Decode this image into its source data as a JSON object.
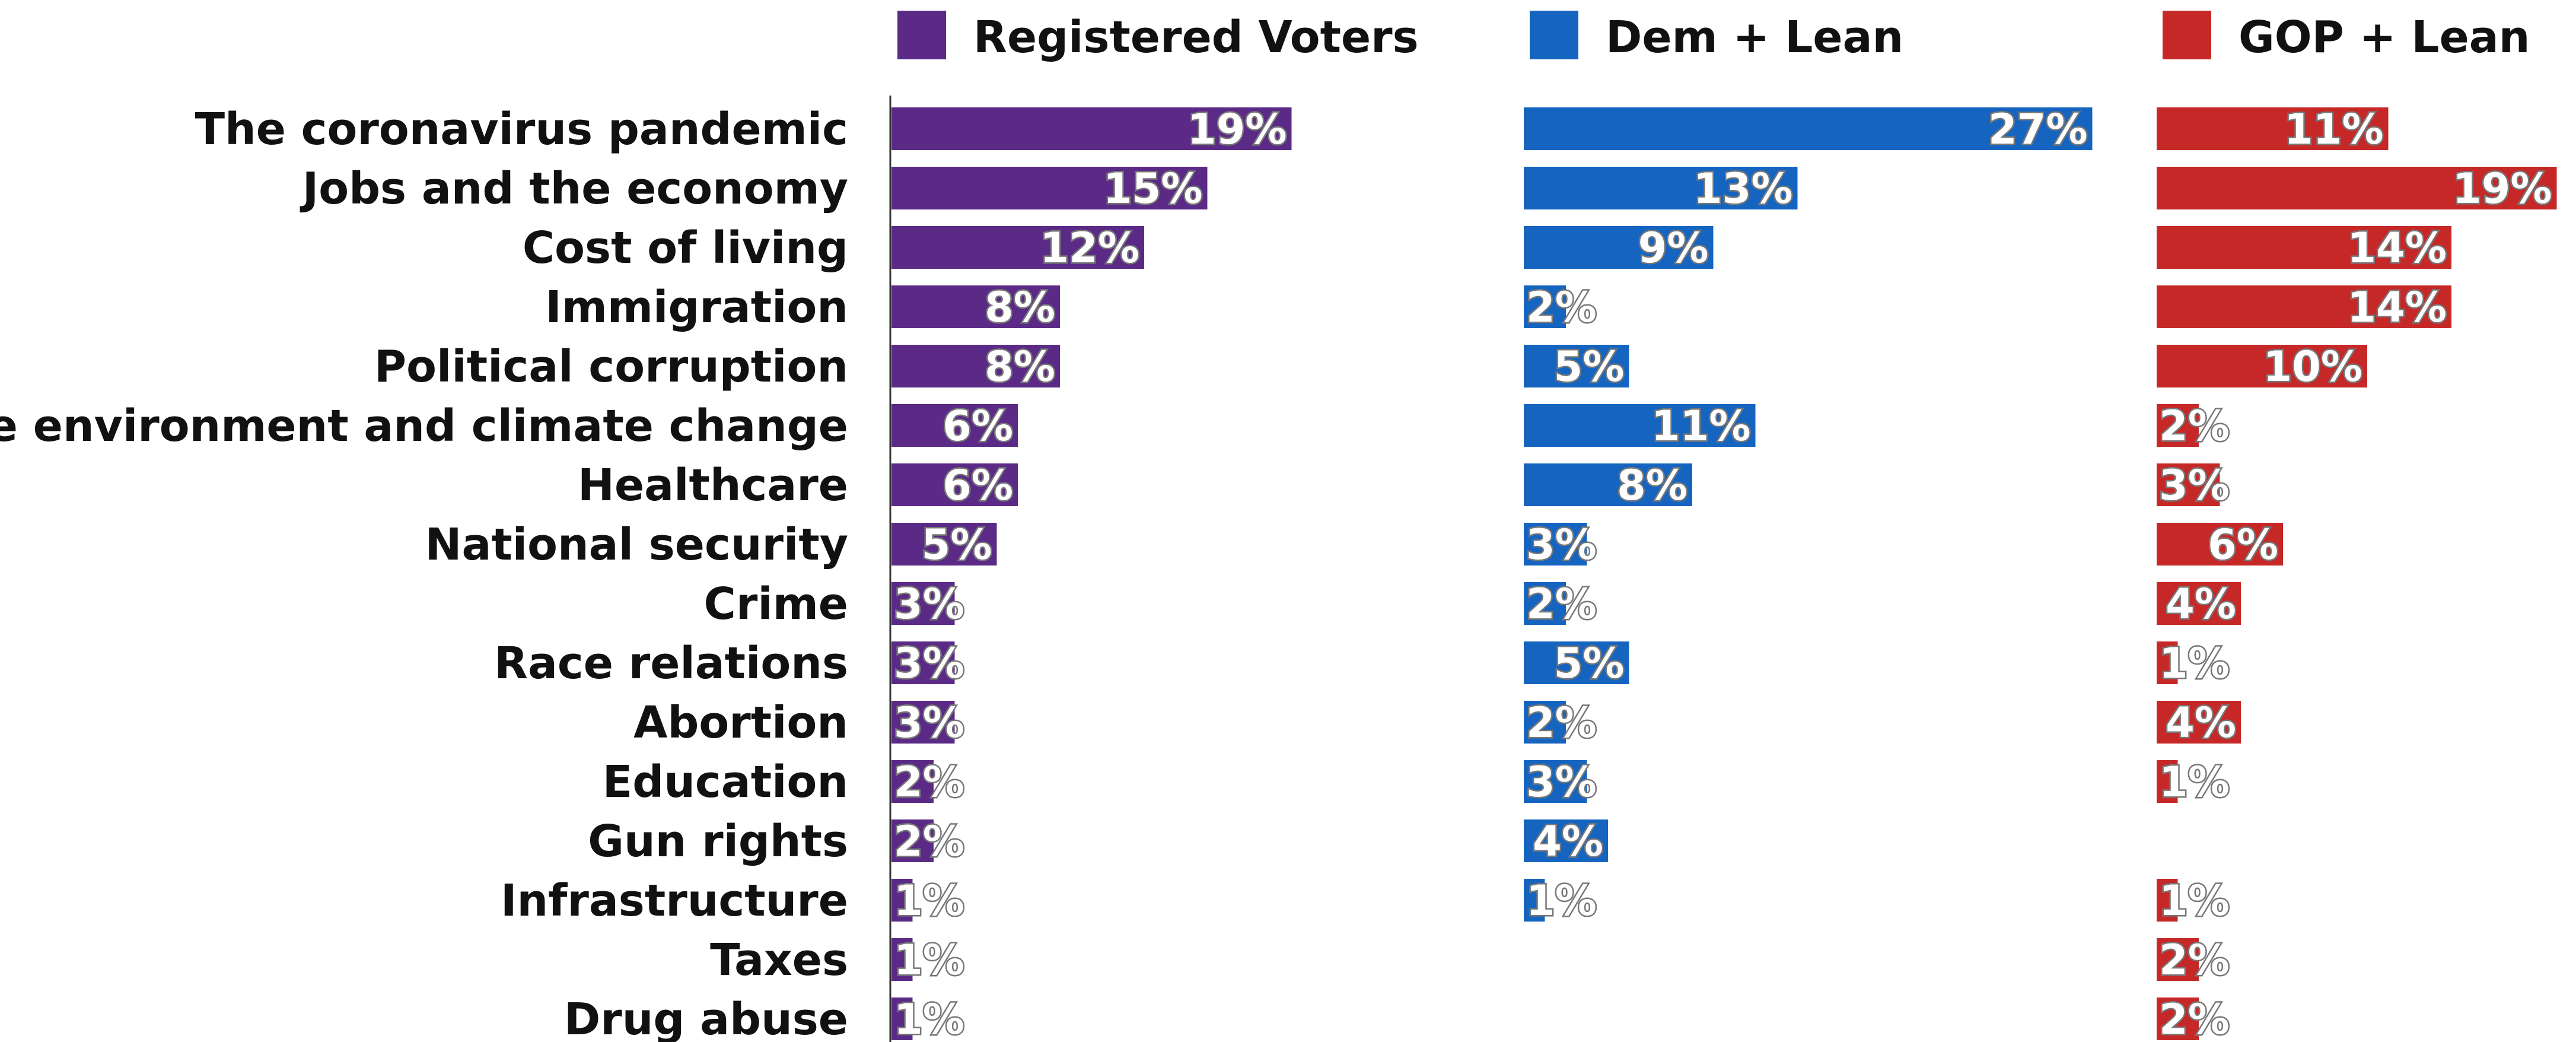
{
  "chart_data": {
    "type": "bar",
    "orientation": "horizontal",
    "value_format": "percent",
    "xlim": [
      0,
      27
    ],
    "grid": false,
    "legend_position": "top",
    "categories": [
      "The coronavirus pandemic",
      "Jobs and the economy",
      "Cost of living",
      "Immigration",
      "Political corruption",
      "The environment and climate change",
      "Healthcare",
      "National security",
      "Crime",
      "Race relations",
      "Abortion",
      "Education",
      "Gun rights",
      "Infrastructure",
      "Taxes",
      "Drug abuse"
    ],
    "series": [
      {
        "name": "Registered Voters",
        "color": "#5b2a86",
        "values": [
          19,
          15,
          12,
          8,
          8,
          6,
          6,
          5,
          3,
          3,
          3,
          2,
          2,
          1,
          1,
          1
        ]
      },
      {
        "name": "Dem + Lean",
        "color": "#1565c0",
        "values": [
          27,
          13,
          9,
          2,
          5,
          11,
          8,
          3,
          2,
          5,
          2,
          3,
          4,
          1,
          null,
          null
        ]
      },
      {
        "name": "GOP + Lean",
        "color": "#c62828",
        "values": [
          11,
          19,
          14,
          14,
          10,
          2,
          3,
          6,
          4,
          1,
          4,
          1,
          null,
          1,
          2,
          2
        ]
      }
    ]
  }
}
